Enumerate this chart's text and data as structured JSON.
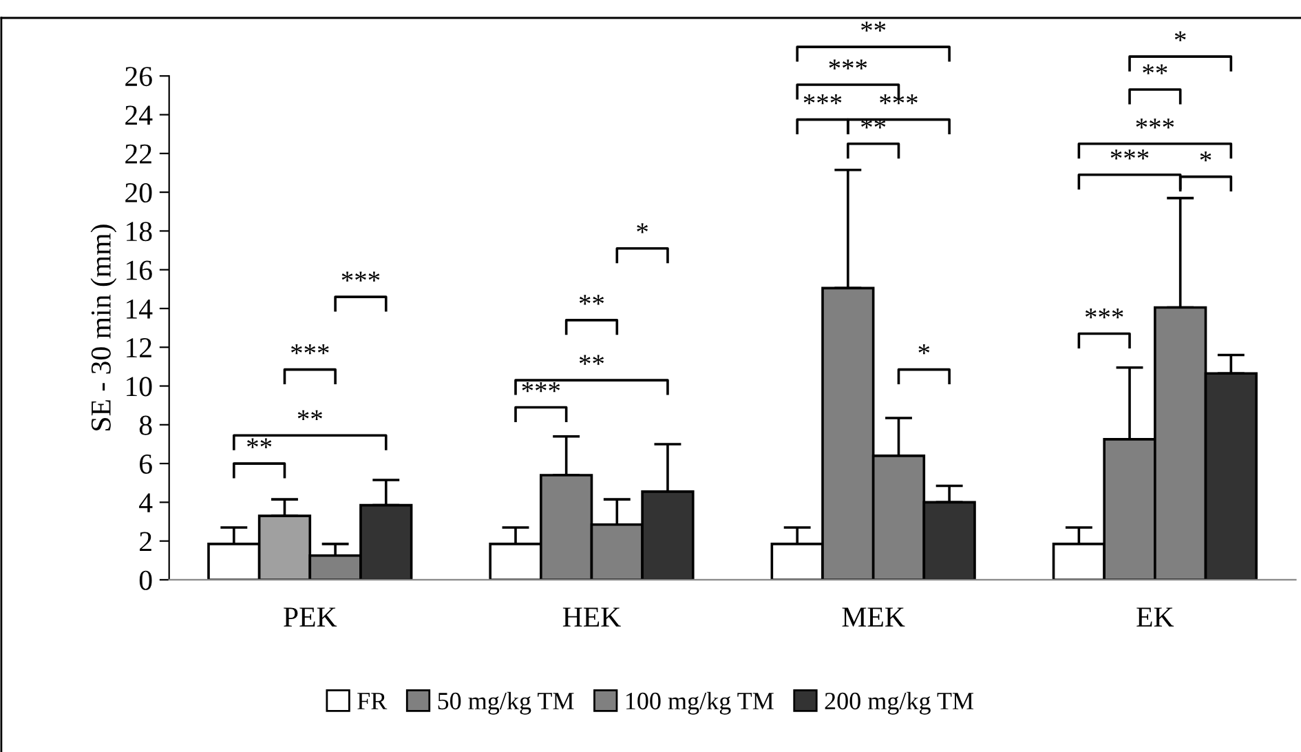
{
  "chart_data": {
    "type": "bar",
    "ylabel": "SE - 30 min (mm)",
    "categories": [
      "PEK",
      "HEK",
      "MEK",
      "EK"
    ],
    "series": [
      {
        "name": "FR",
        "color": "#ffffff",
        "values": [
          1.85,
          1.85,
          1.85,
          1.85
        ],
        "errors": [
          [
            1.85,
            2.7
          ],
          [
            1.85,
            2.7
          ],
          [
            1.85,
            2.7
          ],
          [
            1.85,
            2.7
          ]
        ]
      },
      {
        "name": "50 mg/kg TM",
        "color": "#808080",
        "colors": [
          "#a0a0a0",
          "#808080",
          "#808080",
          "#808080"
        ],
        "values": [
          3.3,
          5.4,
          15.05,
          7.25
        ],
        "errors": [
          [
            3.3,
            4.15
          ],
          [
            5.4,
            7.4
          ],
          [
            15.05,
            21.15
          ],
          [
            7.25,
            10.95
          ]
        ]
      },
      {
        "name": "100 mg/kg TM",
        "color": "#808080",
        "values": [
          1.25,
          2.85,
          6.4,
          14.05
        ],
        "errors": [
          [
            1.25,
            1.85
          ],
          [
            2.85,
            4.15
          ],
          [
            6.4,
            8.35
          ],
          [
            14.05,
            19.7
          ]
        ]
      },
      {
        "name": "200 mg/kg TM",
        "color": "#333333",
        "values": [
          3.85,
          4.55,
          4.0,
          10.65
        ],
        "errors": [
          [
            3.85,
            5.15
          ],
          [
            4.55,
            7.0
          ],
          [
            4.0,
            4.85
          ],
          [
            10.65,
            11.6
          ]
        ]
      }
    ],
    "ylim": [
      0,
      26
    ],
    "yticks": [
      0,
      2,
      4,
      6,
      8,
      10,
      12,
      14,
      16,
      18,
      20,
      22,
      24,
      26
    ],
    "grid": false,
    "legend": "bottom",
    "annotations": [
      "**",
      "**",
      "***",
      "***",
      "***",
      "**",
      "**",
      "*",
      "**",
      "***",
      "***",
      "***",
      "**",
      "*",
      "*",
      "**",
      "***",
      "***",
      "*",
      "***"
    ]
  }
}
